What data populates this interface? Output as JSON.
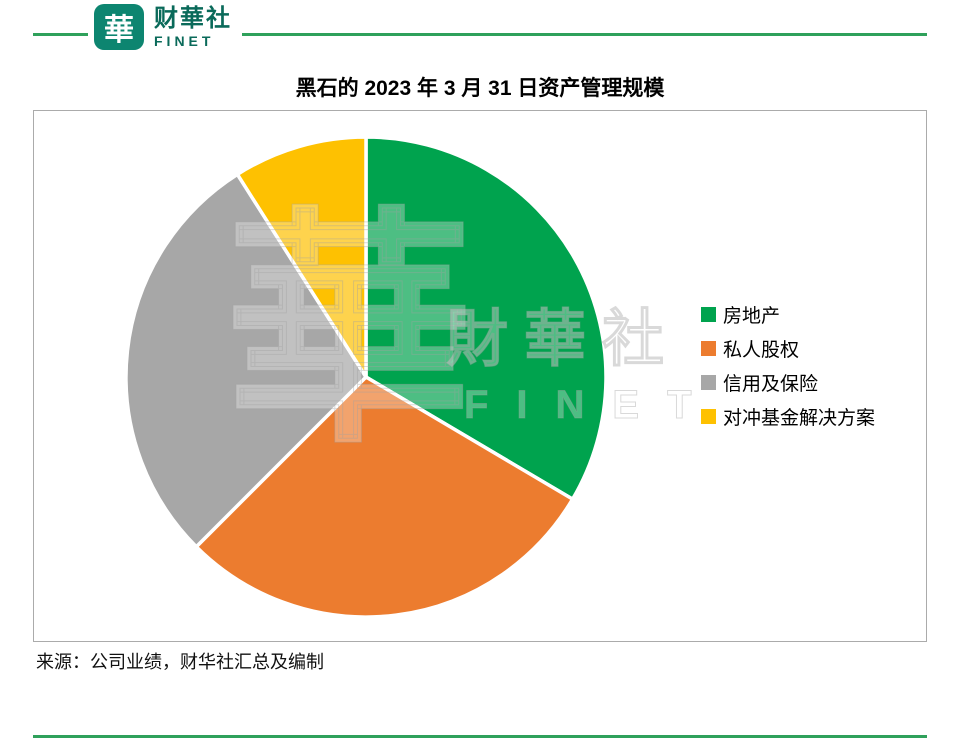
{
  "brand": {
    "logo_char": "華",
    "name_cn": "财華社",
    "name_en": "FINET"
  },
  "title": "黑石的 2023 年 3 月 31 日资产管理规模",
  "source": "来源：公司业绩，财华社汇总及编制",
  "watermark": {
    "logo_char": "華",
    "text_cn": "財華社",
    "text_en": "FINET"
  },
  "colors": {
    "line_green": "#2fa15b",
    "brand_teal": "#0d8570",
    "brand_text": "#0a6a5a",
    "panel_border": "#ababab"
  },
  "chart_data": {
    "type": "pie",
    "title": "黑石的 2023 年 3 月 31 日资产管理规模",
    "labels": [
      "房地产",
      "私人股权",
      "信用及保险",
      "对冲基金解决方案"
    ],
    "values_pct": [
      33.5,
      29.0,
      28.5,
      9.0
    ],
    "colors": [
      "#00a34e",
      "#ec7c2f",
      "#a7a7a7",
      "#fec101"
    ],
    "start_angle_deg": 0,
    "direction": "clockwise",
    "slice_separator_color": "#ffffff",
    "legend_position": "right",
    "legend_orientation": "vertical"
  }
}
